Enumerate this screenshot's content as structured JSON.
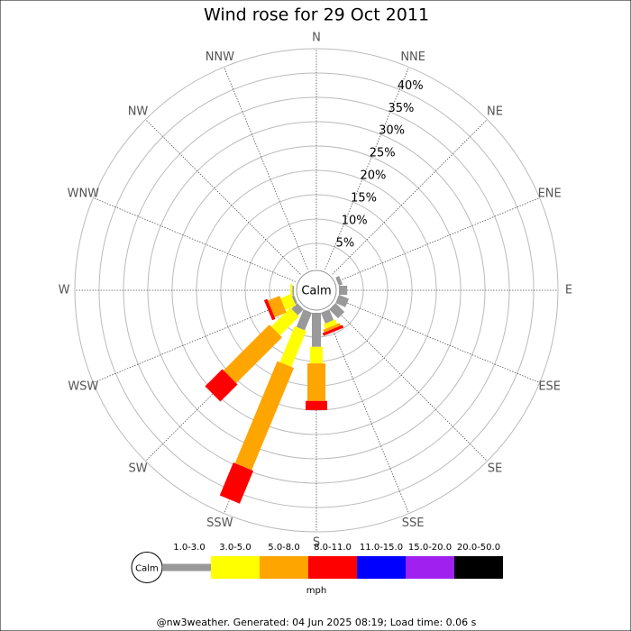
{
  "chart_data": {
    "type": "windrose",
    "title": "Wind rose for 29 Oct 2011",
    "directions": [
      "N",
      "NNE",
      "NE",
      "ENE",
      "E",
      "ESE",
      "SE",
      "SSE",
      "S",
      "SSW",
      "SW",
      "WSW",
      "W",
      "WNW",
      "NW",
      "NNW"
    ],
    "calm_label": "Calm",
    "unit": "mph",
    "ylim": [
      0,
      45
    ],
    "yticks": [
      {
        "value": 5,
        "label": "5%"
      },
      {
        "value": 10,
        "label": "10%"
      },
      {
        "value": 15,
        "label": "15%"
      },
      {
        "value": 20,
        "label": "20%"
      },
      {
        "value": 25,
        "label": "25%"
      },
      {
        "value": 30,
        "label": "30%"
      },
      {
        "value": 35,
        "label": "35%"
      },
      {
        "value": 40,
        "label": "40%"
      }
    ],
    "series": [
      {
        "name": "1.0-3.0",
        "color": "#999999",
        "values": [
          0,
          0,
          0,
          0.8,
          1.7,
          2.2,
          2.6,
          2.4,
          7,
          3.9,
          1.7,
          0.5,
          0.3,
          0,
          0,
          0
        ]
      },
      {
        "name": "3.0-5.0",
        "color": "#ffff00",
        "values": [
          0,
          0,
          0,
          0,
          0,
          0,
          0,
          1,
          3.4,
          8,
          5.5,
          2.3,
          0.4,
          0,
          0,
          0
        ]
      },
      {
        "name": "5.0-8.0",
        "color": "#ffa500",
        "values": [
          0,
          0,
          0,
          0,
          0,
          0,
          0,
          0.6,
          7.7,
          22.7,
          13.3,
          2.6,
          0,
          0,
          0,
          0
        ]
      },
      {
        "name": "8.0-11.0",
        "color": "#ff0000",
        "values": [
          0,
          0,
          0,
          0,
          0,
          0,
          0,
          0.6,
          1.9,
          7.3,
          5,
          0.7,
          0,
          0,
          0,
          0
        ]
      },
      {
        "name": "11.0-15.0",
        "color": "#0000ff",
        "values": [
          0,
          0,
          0,
          0,
          0,
          0,
          0,
          0,
          0,
          0,
          0,
          0,
          0,
          0,
          0,
          0
        ]
      },
      {
        "name": "15.0-20.0",
        "color": "#a020f0",
        "values": [
          0,
          0,
          0,
          0,
          0,
          0,
          0,
          0,
          0,
          0,
          0,
          0,
          0,
          0,
          0,
          0
        ]
      },
      {
        "name": "20.0-50.0",
        "color": "#000000",
        "values": [
          0,
          0,
          0,
          0,
          0,
          0,
          0,
          0,
          0,
          0,
          0,
          0,
          0,
          0,
          0,
          0
        ]
      }
    ]
  },
  "footer": "@nw3weather. Generated: 04 Jun 2025 08:19; Load time: 0.06 s"
}
